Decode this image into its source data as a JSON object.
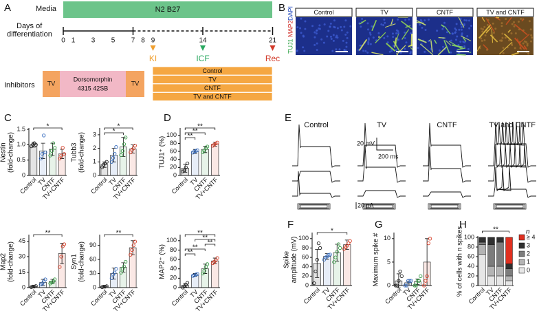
{
  "panel_labels": [
    "A",
    "B",
    "C",
    "D",
    "E",
    "F",
    "G",
    "H"
  ],
  "diagram": {
    "media_label": "Media",
    "media": "N2 B27",
    "days_label": [
      "Days of",
      "differentiation"
    ],
    "days": [
      0,
      1,
      3,
      5,
      7,
      8,
      9,
      14,
      21
    ],
    "timepoints": [
      {
        "day": 9,
        "label": "KI",
        "color": "#f0a030"
      },
      {
        "day": 14,
        "label": "ICF",
        "color": "#2aa860"
      },
      {
        "day": 21,
        "label": "Rec",
        "color": "#d23a2a"
      }
    ],
    "inhibitors_label": "Inhibitors",
    "inhibitors": [
      "TV",
      "Dorsomorphin",
      "4315  42SB",
      "TV"
    ],
    "conditions": [
      "Control",
      "TV",
      "CNTF",
      "TV and CNTF"
    ]
  },
  "images": {
    "stains": [
      {
        "label": "TUJ1",
        "color": "#2aa040"
      },
      {
        "label": "MAP2",
        "color": "#d0302a"
      },
      {
        "label": "DAPI",
        "color": "#2a50c0"
      }
    ],
    "conditions": [
      "Control",
      "TV",
      "CNTF",
      "TV and CNTF"
    ]
  },
  "traces": {
    "conditions": [
      "Control",
      "TV",
      "CNTF",
      "TV and CNTF"
    ],
    "voltage_scale": "20 mV",
    "time_scale": "200 ms",
    "current_scale": "20 pA"
  },
  "chart_data": [
    {
      "type": "bar",
      "ylabel": [
        "Nestin",
        "(fold-change)"
      ],
      "categories": [
        "Control",
        "TV",
        "CNTF",
        "TV+CNTF"
      ],
      "colors": [
        "#222222",
        "#3a6fc0",
        "#3a9e48",
        "#d6402a"
      ],
      "values": [
        1.0,
        0.8,
        0.85,
        0.7
      ],
      "errors": [
        0.08,
        0.25,
        0.2,
        0.15
      ],
      "points": [
        [
          0.95,
          1.0,
          1.05,
          1.0
        ],
        [
          0.55,
          0.7,
          1.3,
          0.75
        ],
        [
          0.65,
          0.8,
          1.05,
          0.9
        ],
        [
          0.55,
          0.65,
          0.9,
          0.7
        ]
      ],
      "ylim": [
        0,
        1.5
      ],
      "yticks": [
        0,
        0.5,
        {
          "value": 1,
          "label": "1.0"
        },
        1.5
      ],
      "significance": [
        {
          "groups": [
            "Control",
            "TV+CNTF"
          ],
          "label": "*"
        }
      ]
    },
    {
      "type": "bar",
      "ylabel": [
        "Tubb3",
        "(fold-change)"
      ],
      "categories": [
        "Control",
        "TV",
        "CNTF",
        "TV+CNTF"
      ],
      "colors": [
        "#222222",
        "#3a6fc0",
        "#3a9e48",
        "#d6402a"
      ],
      "values": [
        0.8,
        1.5,
        2.1,
        1.95
      ],
      "errors": [
        0.2,
        0.5,
        0.7,
        0.3
      ],
      "points": [
        [
          0.6,
          0.8,
          0.9,
          1.0
        ],
        [
          1.0,
          1.3,
          1.6,
          2.1
        ],
        [
          1.5,
          1.8,
          2.3,
          2.8
        ],
        [
          1.7,
          1.9,
          2.0,
          2.2
        ]
      ],
      "ylim": [
        0,
        3.4
      ],
      "yticks": [
        0,
        1,
        2,
        3
      ],
      "significance": [
        {
          "groups": [
            "Control",
            "TV+CNTF"
          ],
          "label": "*"
        },
        {
          "groups": [
            "Control",
            "CNTF"
          ],
          "label": "*"
        }
      ]
    },
    {
      "type": "bar",
      "ylabel": [
        "Map2",
        "(fold-change)"
      ],
      "categories": [
        "Control",
        "TV",
        "CNTF",
        "TV+CNTF"
      ],
      "colors": [
        "#222222",
        "#3a6fc0",
        "#3a9e48",
        "#d6402a"
      ],
      "values": [
        1,
        5,
        6,
        33
      ],
      "errors": [
        1,
        3,
        2,
        10
      ],
      "points": [
        [
          0.5,
          1,
          1,
          1.5
        ],
        [
          3,
          4,
          6,
          8
        ],
        [
          4,
          5,
          6,
          8
        ],
        [
          20,
          30,
          40,
          42
        ]
      ],
      "ylim": [
        0,
        50
      ],
      "yticks": [
        0,
        15,
        30,
        45
      ],
      "significance": [
        {
          "groups": [
            "Control",
            "TV+CNTF"
          ],
          "label": "**"
        }
      ]
    },
    {
      "type": "bar",
      "ylabel": [
        "Syn1",
        "(fold-change)"
      ],
      "categories": [
        "Control",
        "TV",
        "CNTF",
        "TV+CNTF"
      ],
      "colors": [
        "#222222",
        "#3a6fc0",
        "#3a9e48",
        "#d6402a"
      ],
      "values": [
        2,
        30,
        43,
        85
      ],
      "errors": [
        2,
        12,
        10,
        15
      ],
      "points": [
        [
          1,
          2,
          2,
          3
        ],
        [
          20,
          28,
          32,
          40
        ],
        [
          32,
          40,
          45,
          55
        ],
        [
          70,
          80,
          90,
          98
        ]
      ],
      "ylim": [
        0,
        110
      ],
      "yticks": [
        0,
        30,
        60,
        90
      ],
      "significance": [
        {
          "groups": [
            "Control",
            "TV+CNTF"
          ],
          "label": "**"
        }
      ]
    },
    {
      "type": "bar",
      "ylabel": [
        "TUJ1⁺ (%)"
      ],
      "categories": [
        "Control",
        "TV",
        "CNTF",
        "TV+CNTF"
      ],
      "colors": [
        "#222222",
        "#3a6fc0",
        "#3a9e48",
        "#d6402a"
      ],
      "values": [
        18,
        60,
        65,
        78
      ],
      "errors": [
        10,
        5,
        8,
        5
      ],
      "points": [
        [
          10,
          12,
          20,
          30
        ],
        [
          57,
          60,
          61,
          63
        ],
        [
          58,
          62,
          68,
          72
        ],
        [
          74,
          77,
          80,
          82
        ]
      ],
      "ylim": [
        0,
        115
      ],
      "yticks": [
        0,
        20,
        40,
        60,
        80,
        100
      ],
      "significance": [
        {
          "groups": [
            "Control",
            "TV+CNTF"
          ],
          "label": "**"
        },
        {
          "groups": [
            "Control",
            "CNTF"
          ],
          "label": "**"
        },
        {
          "groups": [
            "Control",
            "TV"
          ],
          "label": "**"
        }
      ]
    },
    {
      "type": "bar",
      "ylabel": [
        "MAP2⁺ (%)"
      ],
      "categories": [
        "Control",
        "TV",
        "CNTF",
        "TV+CNTF"
      ],
      "colors": [
        "#222222",
        "#3a6fc0",
        "#3a9e48",
        "#d6402a"
      ],
      "values": [
        5,
        27,
        40,
        57
      ],
      "errors": [
        4,
        3,
        10,
        6
      ],
      "points": [
        [
          0,
          3,
          6,
          10
        ],
        [
          25,
          26,
          28,
          29
        ],
        [
          30,
          36,
          44,
          50
        ],
        [
          52,
          55,
          58,
          63
        ]
      ],
      "ylim": [
        0,
        110
      ],
      "yticks": [
        0,
        20,
        40,
        60,
        80,
        100
      ],
      "significance": [
        {
          "groups": [
            "Control",
            "TV+CNTF"
          ],
          "label": "**"
        },
        {
          "groups": [
            "TV",
            "TV+CNTF"
          ],
          "label": "**"
        },
        {
          "groups": [
            "CNTF",
            "TV+CNTF"
          ],
          "label": "**"
        },
        {
          "groups": [
            "Control",
            "CNTF"
          ],
          "label": "**"
        },
        {
          "groups": [
            "Control",
            "TV"
          ],
          "label": "**"
        }
      ]
    },
    {
      "type": "bar",
      "ylabel": [
        "Spike",
        "amplitude (mV)"
      ],
      "categories": [
        "Control",
        "TV",
        "CNTF",
        "TV+CNTF"
      ],
      "colors": [
        "#222222",
        "#3a6fc0",
        "#3a9e48",
        "#d6402a"
      ],
      "values": [
        47,
        62,
        70,
        87
      ],
      "errors": [
        30,
        6,
        18,
        10
      ],
      "points": [
        [
          5,
          30,
          55,
          90,
          80
        ],
        [
          55,
          60,
          62,
          65,
          66
        ],
        [
          50,
          60,
          72,
          88,
          80
        ],
        [
          78,
          82,
          85,
          90,
          95
        ]
      ],
      "ylim": [
        0,
        110
      ],
      "yticks": [
        0,
        20,
        40,
        60,
        80,
        100
      ],
      "significance": [
        {
          "groups": [
            "Control",
            "TV+CNTF"
          ],
          "label": "*"
        }
      ]
    },
    {
      "type": "bar",
      "ylabel": [
        "Maximum spike #"
      ],
      "categories": [
        "Control",
        "TV",
        "CNTF",
        "TV+CNTF"
      ],
      "colors": [
        "#222222",
        "#3a6fc0",
        "#3a9e48",
        "#d6402a"
      ],
      "values": [
        1,
        0.6,
        0.8,
        5
      ],
      "errors": [
        1.5,
        0.3,
        0.6,
        5
      ],
      "points": [
        [
          0,
          0,
          1,
          3,
          2
        ],
        [
          0,
          0,
          1,
          1,
          1
        ],
        [
          0,
          0,
          1,
          1,
          2
        ],
        [
          0,
          1,
          2,
          9,
          10
        ]
      ],
      "ylim": [
        0,
        11
      ],
      "yticks": [
        0,
        5,
        10
      ],
      "significance": []
    },
    {
      "type": "stacked_bar",
      "ylabel": [
        "% of cells with n spikes"
      ],
      "categories": [
        "Control",
        "TV",
        "CNTF",
        "TV+CNTF"
      ],
      "legend_title": "n",
      "series": [
        {
          "name": "0",
          "color": "#e6e6e6",
          "values": [
            65,
            20,
            20,
            10
          ]
        },
        {
          "name": "1",
          "color": "#b4b4b4",
          "values": [
            20,
            20,
            20,
            10
          ]
        },
        {
          "name": "2",
          "color": "#7c7c7c",
          "values": [
            5,
            45,
            50,
            15
          ]
        },
        {
          "name": "3",
          "color": "#303030",
          "values": [
            10,
            15,
            10,
            10
          ]
        },
        {
          "name": "≥ 4",
          "color": "#e03020",
          "values": [
            0,
            0,
            0,
            55
          ]
        }
      ],
      "ylim": [
        0,
        100
      ],
      "yticks": [
        0,
        20,
        40,
        60,
        80,
        100
      ],
      "significance": [
        {
          "groups": [
            "Control",
            "TV+CNTF"
          ],
          "label": "**"
        }
      ]
    }
  ]
}
